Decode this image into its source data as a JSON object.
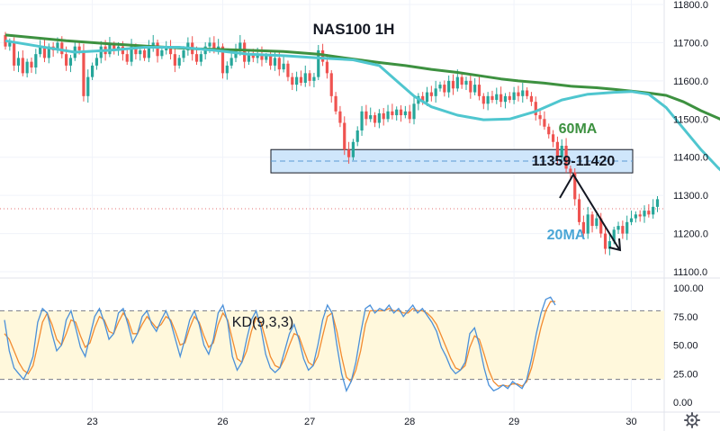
{
  "chart_data": {
    "type": "candlestick",
    "title": "NAS100 1H",
    "price_panel": {
      "y_ticks": [
        "11800.0",
        "11700.0",
        "11600.0",
        "11500.0",
        "11400.0",
        "11300.0",
        "11200.0",
        "11100.0"
      ],
      "ylim": [
        11070,
        11820
      ],
      "zone": {
        "label": "11359-11420",
        "low": 11359,
        "high": 11420,
        "mid": 11390
      },
      "current_price_line": 11265,
      "ma60": {
        "label": "60MA",
        "color": "#3d9140",
        "points": [
          [
            0,
            11720
          ],
          [
            14,
            11705
          ],
          [
            24,
            11697
          ],
          [
            34,
            11690
          ],
          [
            44,
            11684
          ],
          [
            56,
            11680
          ],
          [
            64,
            11677
          ],
          [
            72,
            11670
          ],
          [
            78,
            11660
          ],
          [
            86,
            11648
          ],
          [
            92,
            11640
          ],
          [
            98,
            11630
          ],
          [
            104,
            11622
          ],
          [
            110,
            11612
          ],
          [
            114,
            11605
          ],
          [
            118,
            11600
          ],
          [
            124,
            11594
          ],
          [
            130,
            11586
          ],
          [
            136,
            11582
          ],
          [
            140,
            11578
          ],
          [
            144,
            11573
          ],
          [
            148,
            11568
          ],
          [
            152,
            11562
          ],
          [
            156,
            11545
          ],
          [
            160,
            11522
          ],
          [
            164,
            11502
          ],
          [
            168,
            11480
          ],
          [
            172,
            11462
          ],
          [
            176,
            11452
          ],
          [
            179,
            11448
          ]
        ]
      },
      "ma20": {
        "label": "20MA",
        "color": "#4fc6cf",
        "points": [
          [
            0,
            11705
          ],
          [
            8,
            11690
          ],
          [
            16,
            11675
          ],
          [
            24,
            11680
          ],
          [
            32,
            11688
          ],
          [
            40,
            11688
          ],
          [
            48,
            11680
          ],
          [
            56,
            11670
          ],
          [
            64,
            11666
          ],
          [
            72,
            11660
          ],
          [
            80,
            11655
          ],
          [
            86,
            11640
          ],
          [
            90,
            11600
          ],
          [
            94,
            11560
          ],
          [
            98,
            11532
          ],
          [
            104,
            11510
          ],
          [
            110,
            11498
          ],
          [
            116,
            11500
          ],
          [
            122,
            11520
          ],
          [
            128,
            11550
          ],
          [
            134,
            11565
          ],
          [
            140,
            11570
          ],
          [
            144,
            11572
          ],
          [
            148,
            11565
          ],
          [
            152,
            11530
          ],
          [
            156,
            11475
          ],
          [
            160,
            11420
          ],
          [
            164,
            11372
          ],
          [
            168,
            11330
          ],
          [
            172,
            11295
          ],
          [
            176,
            11266
          ],
          [
            179,
            11250
          ]
        ]
      },
      "candles": [
        [
          11720,
          11690
        ],
        [
          11690,
          11700
        ],
        [
          11700,
          11640
        ],
        [
          11640,
          11660
        ],
        [
          11660,
          11620
        ],
        [
          11620,
          11650
        ],
        [
          11650,
          11635
        ],
        [
          11635,
          11670
        ],
        [
          11670,
          11690
        ],
        [
          11690,
          11660
        ],
        [
          11660,
          11690
        ],
        [
          11690,
          11680
        ],
        [
          11680,
          11700
        ],
        [
          11700,
          11670
        ],
        [
          11670,
          11640
        ],
        [
          11640,
          11660
        ],
        [
          11660,
          11690
        ],
        [
          11690,
          11680
        ],
        [
          11680,
          11560
        ],
        [
          11560,
          11610
        ],
        [
          11610,
          11640
        ],
        [
          11640,
          11660
        ],
        [
          11660,
          11690
        ],
        [
          11690,
          11670
        ],
        [
          11670,
          11695
        ],
        [
          11695,
          11680
        ],
        [
          11680,
          11690
        ],
        [
          11690,
          11670
        ],
        [
          11670,
          11650
        ],
        [
          11650,
          11690
        ],
        [
          11690,
          11670
        ],
        [
          11670,
          11680
        ],
        [
          11680,
          11660
        ],
        [
          11660,
          11690
        ],
        [
          11690,
          11700
        ],
        [
          11700,
          11665
        ],
        [
          11665,
          11680
        ],
        [
          11680,
          11690
        ],
        [
          11690,
          11670
        ],
        [
          11670,
          11640
        ],
        [
          11640,
          11660
        ],
        [
          11660,
          11680
        ],
        [
          11680,
          11700
        ],
        [
          11700,
          11670
        ],
        [
          11670,
          11650
        ],
        [
          11650,
          11670
        ],
        [
          11670,
          11690
        ],
        [
          11690,
          11700
        ],
        [
          11700,
          11680
        ],
        [
          11680,
          11690
        ],
        [
          11690,
          11620
        ],
        [
          11620,
          11640
        ],
        [
          11640,
          11660
        ],
        [
          11660,
          11680
        ],
        [
          11680,
          11700
        ],
        [
          11700,
          11650
        ],
        [
          11650,
          11670
        ],
        [
          11670,
          11660
        ],
        [
          11660,
          11670
        ],
        [
          11670,
          11655
        ],
        [
          11655,
          11665
        ],
        [
          11665,
          11640
        ],
        [
          11640,
          11660
        ],
        [
          11660,
          11630
        ],
        [
          11630,
          11645
        ],
        [
          11645,
          11610
        ],
        [
          11610,
          11590
        ],
        [
          11590,
          11610
        ],
        [
          11610,
          11595
        ],
        [
          11595,
          11620
        ],
        [
          11620,
          11600
        ],
        [
          11600,
          11610
        ],
        [
          11610,
          11680
        ],
        [
          11680,
          11650
        ],
        [
          11650,
          11620
        ],
        [
          11620,
          11560
        ],
        [
          11560,
          11520
        ],
        [
          11520,
          11490
        ],
        [
          11490,
          11420
        ],
        [
          11420,
          11400
        ],
        [
          11400,
          11440
        ],
        [
          11440,
          11470
        ],
        [
          11470,
          11520
        ],
        [
          11520,
          11500
        ],
        [
          11500,
          11510
        ],
        [
          11510,
          11490
        ],
        [
          11490,
          11515
        ],
        [
          11515,
          11500
        ],
        [
          11500,
          11520
        ],
        [
          11520,
          11510
        ],
        [
          11510,
          11525
        ],
        [
          11525,
          11510
        ],
        [
          11510,
          11520
        ],
        [
          11520,
          11500
        ],
        [
          11500,
          11540
        ],
        [
          11540,
          11560
        ],
        [
          11560,
          11545
        ],
        [
          11545,
          11570
        ],
        [
          11570,
          11560
        ],
        [
          11560,
          11580
        ],
        [
          11580,
          11590
        ],
        [
          11590,
          11570
        ],
        [
          11570,
          11600
        ],
        [
          11600,
          11580
        ],
        [
          11580,
          11610
        ],
        [
          11610,
          11590
        ],
        [
          11590,
          11600
        ],
        [
          11600,
          11570
        ],
        [
          11570,
          11590
        ],
        [
          11590,
          11560
        ],
        [
          11560,
          11540
        ],
        [
          11540,
          11560
        ],
        [
          11560,
          11550
        ],
        [
          11550,
          11565
        ],
        [
          11565,
          11545
        ],
        [
          11545,
          11560
        ],
        [
          11560,
          11550
        ],
        [
          11550,
          11570
        ],
        [
          11570,
          11560
        ],
        [
          11560,
          11575
        ],
        [
          11575,
          11560
        ],
        [
          11560,
          11545
        ],
        [
          11545,
          11510
        ],
        [
          11510,
          11500
        ],
        [
          11500,
          11480
        ],
        [
          11480,
          11460
        ],
        [
          11460,
          11440
        ],
        [
          11440,
          11400
        ],
        [
          11400,
          11430
        ],
        [
          11430,
          11370
        ],
        [
          11370,
          11360
        ],
        [
          11360,
          11290
        ],
        [
          11290,
          11230
        ],
        [
          11230,
          11200
        ],
        [
          11200,
          11250
        ],
        [
          11250,
          11220
        ],
        [
          11220,
          11240
        ],
        [
          11240,
          11200
        ],
        [
          11200,
          11160
        ],
        [
          11160,
          11180
        ],
        [
          11180,
          11210
        ],
        [
          11210,
          11220
        ],
        [
          11220,
          11200
        ],
        [
          11200,
          11230
        ],
        [
          11230,
          11240
        ],
        [
          11240,
          11250
        ],
        [
          11250,
          11245
        ],
        [
          11245,
          11260
        ],
        [
          11260,
          11250
        ],
        [
          11250,
          11270
        ],
        [
          11270,
          11290
        ]
      ]
    },
    "kd_panel": {
      "label": "KD(9,3,3)",
      "y_ticks": [
        "100.00",
        "75.00",
        "50.00",
        "25.00",
        "0.00"
      ],
      "ylim": [
        -5,
        103
      ],
      "band": [
        20,
        80
      ],
      "k_color": "#4a90d9",
      "d_color": "#f28b30",
      "k": [
        72,
        45,
        30,
        25,
        20,
        28,
        40,
        70,
        82,
        78,
        60,
        45,
        50,
        72,
        80,
        65,
        48,
        40,
        58,
        75,
        82,
        70,
        55,
        60,
        78,
        82,
        68,
        52,
        60,
        75,
        80,
        68,
        62,
        72,
        80,
        70,
        55,
        40,
        55,
        72,
        80,
        68,
        50,
        42,
        55,
        78,
        85,
        70,
        40,
        28,
        35,
        55,
        72,
        80,
        65,
        42,
        30,
        26,
        30,
        45,
        60,
        68,
        55,
        38,
        28,
        32,
        50,
        72,
        85,
        78,
        50,
        25,
        10,
        18,
        35,
        60,
        82,
        85,
        78,
        82,
        80,
        85,
        78,
        82,
        75,
        80,
        85,
        78,
        82,
        76,
        70,
        62,
        48,
        40,
        30,
        25,
        28,
        35,
        60,
        65,
        50,
        30,
        15,
        10,
        12,
        15,
        12,
        18,
        15,
        12,
        20,
        38,
        60,
        78,
        90,
        92,
        85
      ],
      "d": [
        60,
        55,
        45,
        35,
        28,
        25,
        32,
        50,
        70,
        78,
        68,
        55,
        50,
        60,
        72,
        70,
        58,
        48,
        52,
        65,
        75,
        72,
        62,
        60,
        70,
        78,
        72,
        60,
        60,
        68,
        75,
        70,
        65,
        68,
        75,
        72,
        62,
        50,
        52,
        65,
        75,
        70,
        58,
        48,
        52,
        68,
        78,
        72,
        55,
        38,
        35,
        45,
        62,
        74,
        70,
        55,
        40,
        32,
        30,
        38,
        50,
        60,
        58,
        46,
        35,
        32,
        40,
        58,
        75,
        78,
        62,
        40,
        22,
        18,
        28,
        45,
        68,
        80,
        80,
        80,
        80,
        82,
        80,
        80,
        78,
        78,
        82,
        80,
        80,
        78,
        74,
        68,
        58,
        48,
        38,
        30,
        28,
        32,
        48,
        58,
        55,
        42,
        28,
        18,
        14,
        15,
        14,
        16,
        16,
        14,
        18,
        30,
        48,
        66,
        80,
        88,
        88
      ]
    },
    "x_labels": [
      {
        "label": "23",
        "bar": 20
      },
      {
        "label": "26",
        "bar": 50
      },
      {
        "label": "27",
        "bar": 70
      },
      {
        "label": "28",
        "bar": 93
      },
      {
        "label": "29",
        "bar": 117
      },
      {
        "label": "30",
        "bar": 144
      }
    ],
    "ma_labels": {
      "ma60": "60MA",
      "ma20": "20MA"
    }
  },
  "icons": {
    "settings": "gear-icon"
  }
}
